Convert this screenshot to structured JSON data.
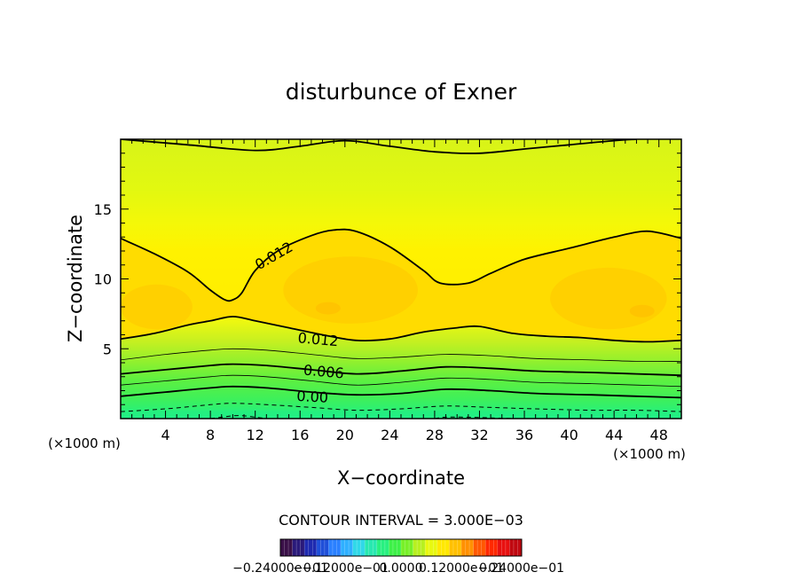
{
  "chart_data": {
    "type": "contour",
    "title": "disturbunce of Exner",
    "xlabel": "X−coordinate",
    "ylabel": "Z−coordinate",
    "x_unit": "(×1000 m)",
    "y_unit": "(×1000 m)",
    "xlim": [
      0,
      50
    ],
    "ylim": [
      0,
      20
    ],
    "x_ticks": [
      4,
      8,
      12,
      16,
      20,
      24,
      28,
      32,
      36,
      40,
      44,
      48
    ],
    "y_ticks": [
      5,
      10,
      15
    ],
    "contour_interval_text": "CONTOUR INTERVAL = 3.000E−03",
    "colorbar_labels": [
      "−0.24000e−01",
      "−0.12000e−01",
      "0.0000",
      "0.12000e−01",
      "0.24000e−01"
    ],
    "colorbar_colors": [
      "#3a1048",
      "#2a1a7a",
      "#1e2ab0",
      "#1f4fd8",
      "#2a80ff",
      "#2fb0ff",
      "#30d8e8",
      "#28e8b0",
      "#28f080",
      "#3ef048",
      "#78f028",
      "#b8f020",
      "#e8f810",
      "#ffe800",
      "#ffc000",
      "#ff9000",
      "#ff5800",
      "#ff2800",
      "#e81010",
      "#c00810"
    ],
    "contour_labels": [
      {
        "text": "0.012"
      },
      {
        "text": "0.012"
      },
      {
        "text": "0.006"
      },
      {
        "text": "0.00"
      }
    ],
    "contours": [
      {
        "level": 0.021,
        "style": "solid",
        "points": [
          [
            0,
            20
          ],
          [
            6,
            19.6
          ],
          [
            12,
            19.2
          ],
          [
            16,
            19.5
          ],
          [
            20,
            19.9
          ],
          [
            24,
            19.5
          ],
          [
            28,
            19.1
          ],
          [
            32,
            19.0
          ],
          [
            36,
            19.3
          ],
          [
            40,
            19.6
          ],
          [
            44,
            19.9
          ],
          [
            46,
            20
          ]
        ]
      },
      {
        "level": 0.012,
        "style": "solid",
        "points": [
          [
            0,
            12.9
          ],
          [
            3,
            11.8
          ],
          [
            6,
            10.5
          ],
          [
            8,
            9.2
          ],
          [
            9.3,
            8.5
          ],
          [
            10,
            8.5
          ],
          [
            10.8,
            9.0
          ],
          [
            12,
            10.6
          ],
          [
            14,
            12.0
          ],
          [
            17,
            13.1
          ],
          [
            19,
            13.5
          ],
          [
            21,
            13.4
          ],
          [
            24,
            12.3
          ],
          [
            27,
            10.6
          ],
          [
            28.5,
            9.7
          ],
          [
            31,
            9.7
          ],
          [
            33,
            10.4
          ],
          [
            36,
            11.4
          ],
          [
            40,
            12.2
          ],
          [
            44,
            13.0
          ],
          [
            46.5,
            13.4
          ],
          [
            48,
            13.3
          ],
          [
            50,
            12.9
          ]
        ]
      },
      {
        "level": 0.012,
        "style": "solid",
        "points": [
          [
            0,
            5.7
          ],
          [
            3,
            6.1
          ],
          [
            6,
            6.7
          ],
          [
            8,
            7.0
          ],
          [
            10,
            7.3
          ],
          [
            12,
            7.0
          ],
          [
            15,
            6.5
          ],
          [
            18,
            6.0
          ],
          [
            21,
            5.6
          ],
          [
            24,
            5.7
          ],
          [
            27,
            6.2
          ],
          [
            30,
            6.5
          ],
          [
            32,
            6.6
          ],
          [
            35,
            6.1
          ],
          [
            38,
            5.9
          ],
          [
            41,
            5.8
          ],
          [
            44,
            5.6
          ],
          [
            47,
            5.5
          ],
          [
            50,
            5.6
          ]
        ]
      },
      {
        "level": 0.009,
        "style": "thin",
        "points": [
          [
            0,
            4.2
          ],
          [
            4,
            4.6
          ],
          [
            8,
            4.9
          ],
          [
            10,
            5.0
          ],
          [
            13,
            4.9
          ],
          [
            17,
            4.6
          ],
          [
            21,
            4.3
          ],
          [
            25,
            4.4
          ],
          [
            29,
            4.6
          ],
          [
            33,
            4.5
          ],
          [
            37,
            4.3
          ],
          [
            42,
            4.2
          ],
          [
            46,
            4.1
          ],
          [
            50,
            4.1
          ]
        ]
      },
      {
        "level": 0.006,
        "style": "solid",
        "points": [
          [
            0,
            3.2
          ],
          [
            4,
            3.5
          ],
          [
            8,
            3.8
          ],
          [
            10,
            3.9
          ],
          [
            13,
            3.8
          ],
          [
            17,
            3.5
          ],
          [
            21,
            3.2
          ],
          [
            25,
            3.4
          ],
          [
            29,
            3.7
          ],
          [
            33,
            3.6
          ],
          [
            37,
            3.4
          ],
          [
            42,
            3.3
          ],
          [
            46,
            3.2
          ],
          [
            50,
            3.1
          ]
        ]
      },
      {
        "level": 0.003,
        "style": "thin",
        "points": [
          [
            0,
            2.4
          ],
          [
            4,
            2.7
          ],
          [
            8,
            3.0
          ],
          [
            10,
            3.1
          ],
          [
            13,
            3.0
          ],
          [
            17,
            2.7
          ],
          [
            21,
            2.4
          ],
          [
            25,
            2.6
          ],
          [
            29,
            2.9
          ],
          [
            33,
            2.8
          ],
          [
            37,
            2.6
          ],
          [
            42,
            2.5
          ],
          [
            46,
            2.4
          ],
          [
            50,
            2.3
          ]
        ]
      },
      {
        "level": 0.0,
        "style": "solid",
        "points": [
          [
            0,
            1.6
          ],
          [
            4,
            1.9
          ],
          [
            8,
            2.2
          ],
          [
            10,
            2.3
          ],
          [
            13,
            2.2
          ],
          [
            17,
            1.9
          ],
          [
            21,
            1.7
          ],
          [
            25,
            1.8
          ],
          [
            29,
            2.1
          ],
          [
            33,
            2.0
          ],
          [
            37,
            1.8
          ],
          [
            42,
            1.7
          ],
          [
            46,
            1.6
          ],
          [
            50,
            1.5
          ]
        ]
      },
      {
        "level": -0.003,
        "style": "dashed",
        "points": [
          [
            0,
            0.5
          ],
          [
            4,
            0.7
          ],
          [
            8,
            1.0
          ],
          [
            10,
            1.1
          ],
          [
            13,
            1.0
          ],
          [
            17,
            0.8
          ],
          [
            21,
            0.6
          ],
          [
            25,
            0.7
          ],
          [
            29,
            0.9
          ],
          [
            33,
            0.8
          ],
          [
            37,
            0.7
          ],
          [
            42,
            0.6
          ],
          [
            46,
            0.6
          ],
          [
            50,
            0.5
          ]
        ]
      },
      {
        "level": -0.006,
        "style": "dashed",
        "points": [
          [
            8,
            0
          ],
          [
            9,
            0.1
          ],
          [
            10,
            0.2
          ],
          [
            11,
            0.2
          ],
          [
            12,
            0.1
          ],
          [
            13,
            0
          ]
        ]
      },
      {
        "level": -0.006,
        "style": "dashed",
        "points": [
          [
            28,
            0
          ],
          [
            29,
            0.1
          ],
          [
            31,
            0.1
          ],
          [
            33,
            0.05
          ],
          [
            35,
            0
          ]
        ]
      }
    ],
    "grid": false
  }
}
